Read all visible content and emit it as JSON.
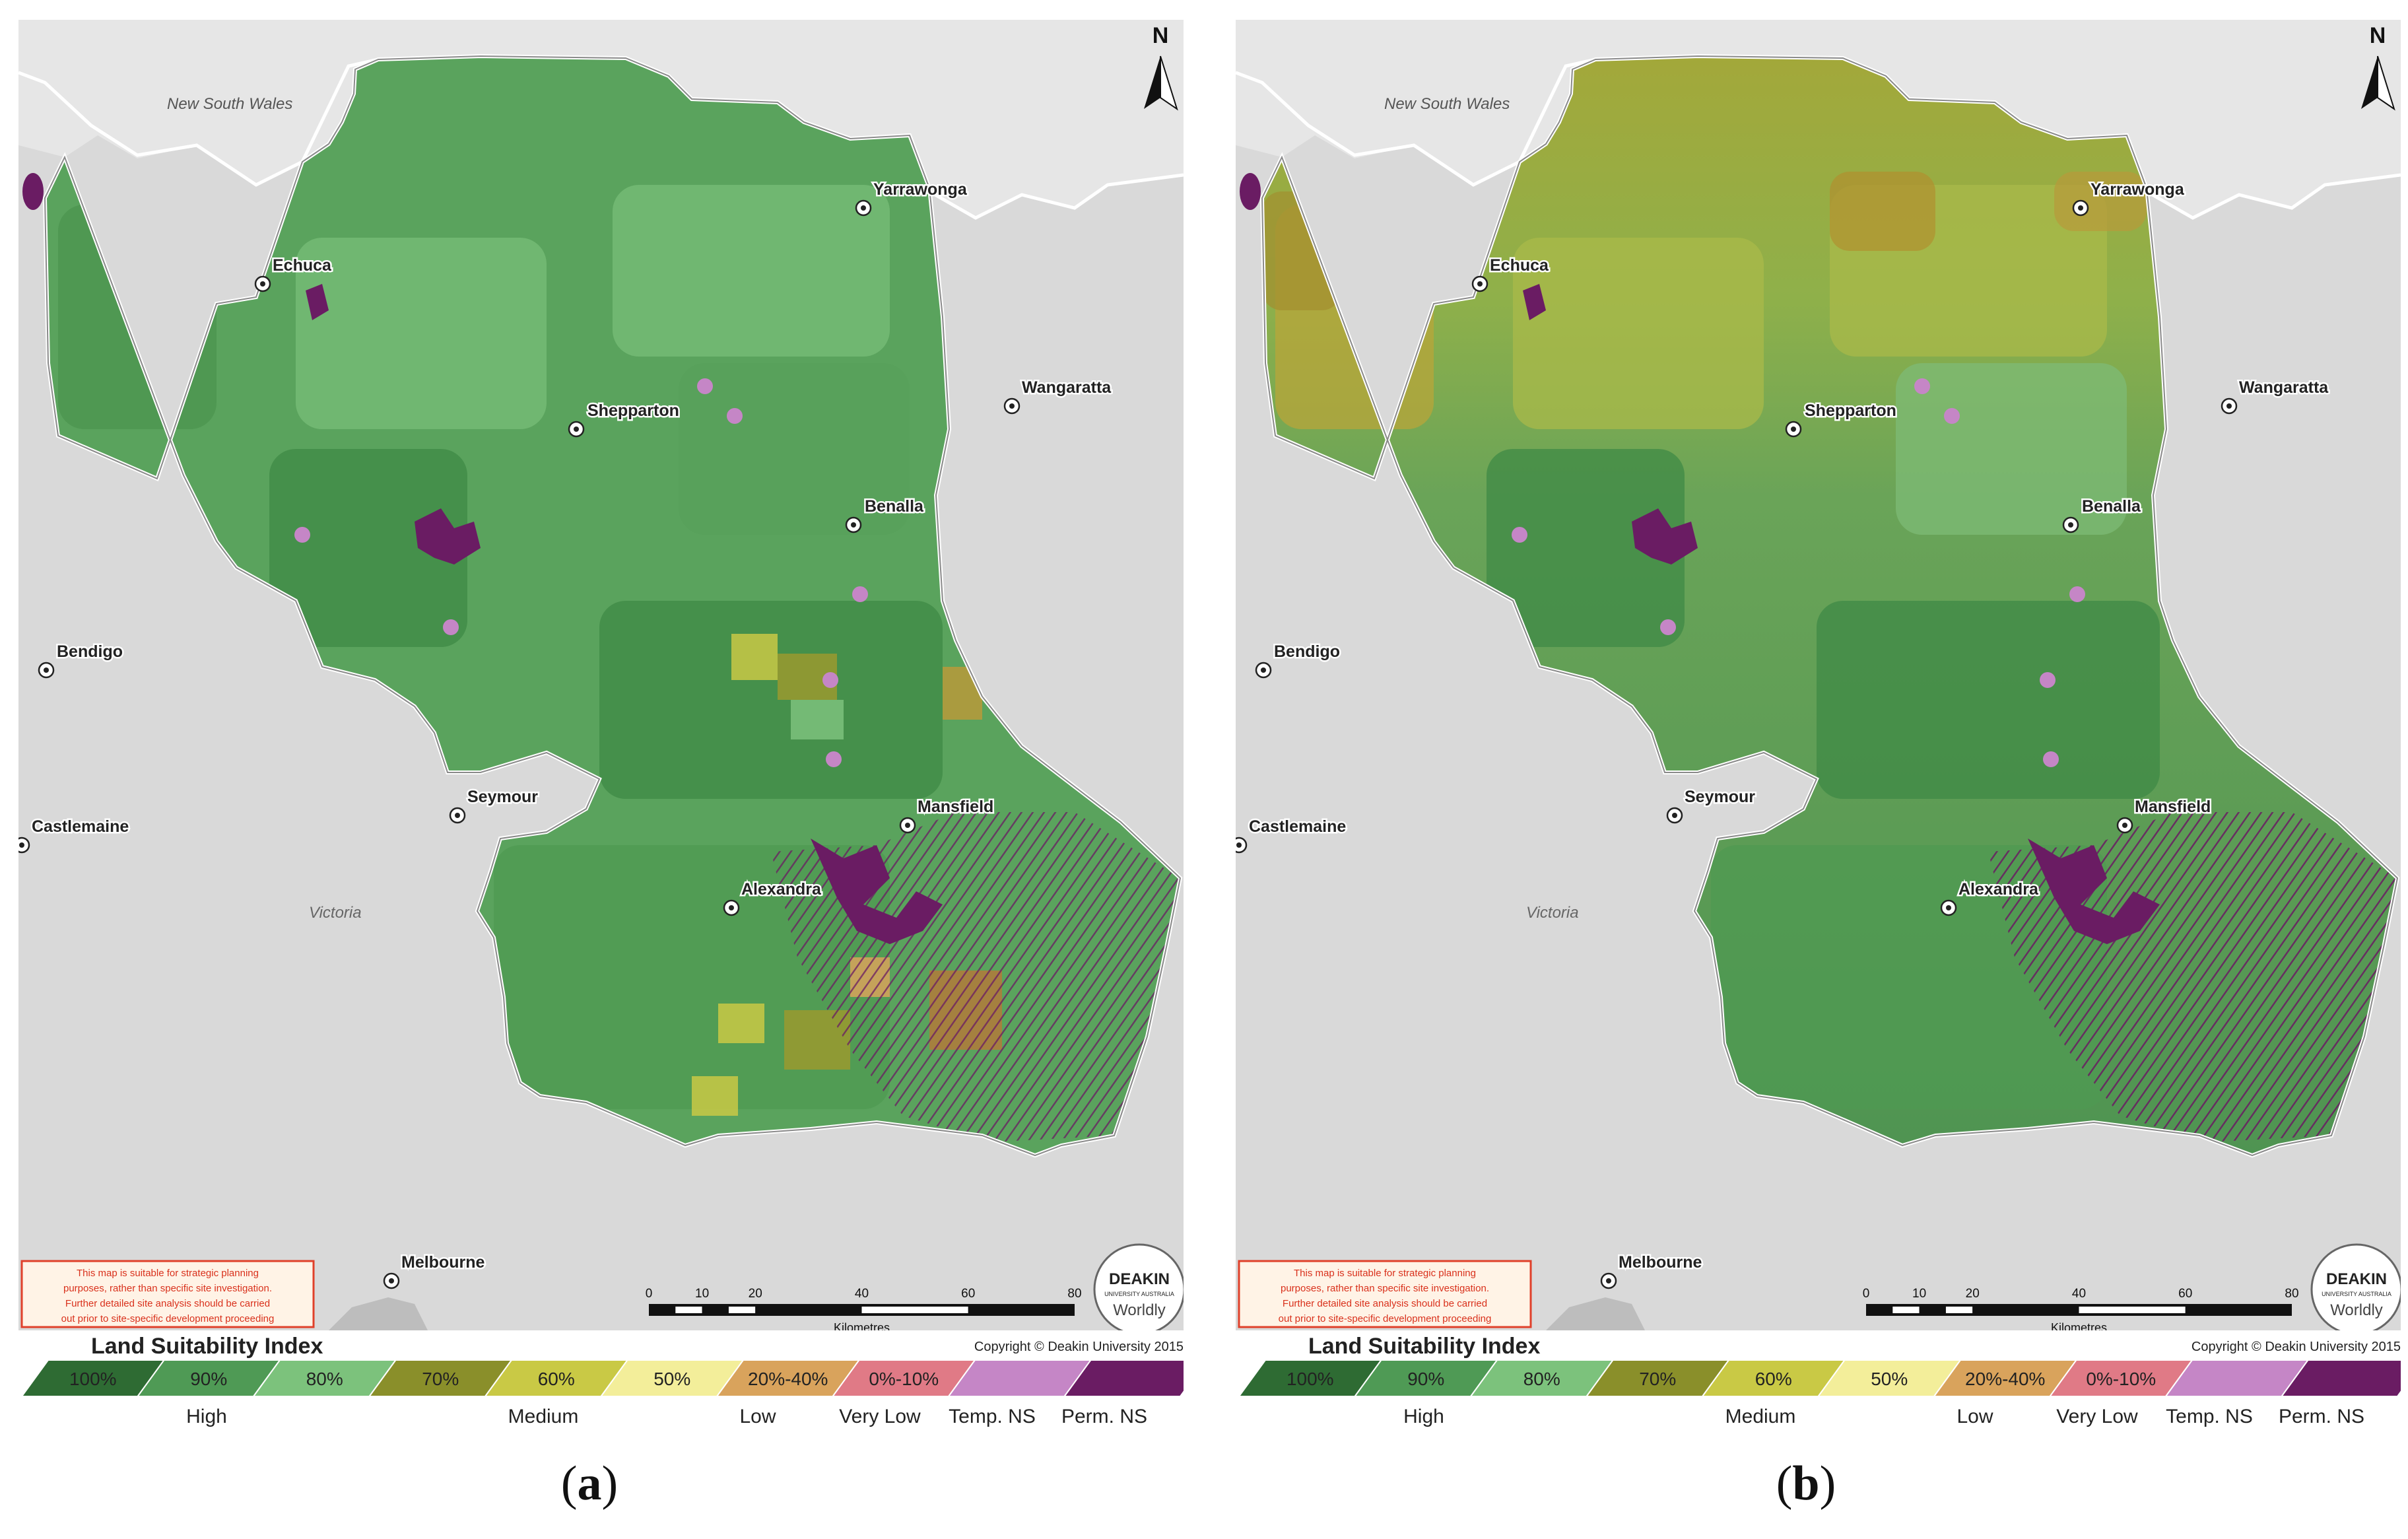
{
  "panels": [
    {
      "id": "a",
      "caption": "a",
      "places": {
        "nsw": "New South Wales",
        "victoria": "Victoria",
        "yarrawonga": "Yarrawonga",
        "echuca": "Echuca",
        "wangaratta": "Wangaratta",
        "shepparton": "Shepparton",
        "benalla": "Benalla",
        "bendigo": "Bendigo",
        "seymour": "Seymour",
        "mansfield": "Mansfield",
        "castlemaine": "Castlemaine",
        "alexandra": "Alexandra",
        "melbourne": "Melbourne"
      },
      "north": "N",
      "disclaimer": [
        "This map is suitable for strategic planning",
        "purposes, rather than specific site investigation.",
        "Further detailed site analysis should be carried",
        "out prior to site-specific development proceeding"
      ],
      "scale": {
        "ticks": [
          "0",
          "10",
          "20",
          "40",
          "60",
          "80"
        ],
        "unit": "Kilometres"
      },
      "logo": {
        "name": "DEAKIN",
        "sub": "UNIVERSITY AUSTRALIA",
        "tag": "Worldly"
      },
      "copyright": "Copyright © Deakin University 2015",
      "legend_title": "Land Suitability Index",
      "classes": [
        "100%",
        "90%",
        "80%",
        "70%",
        "60%",
        "50%",
        "20%-40%",
        "0%-10%",
        "",
        ""
      ],
      "groups": [
        "High",
        "Medium",
        "Low",
        "Very Low",
        "Temp. NS",
        "Perm. NS"
      ]
    },
    {
      "id": "b",
      "caption": "b",
      "places": {
        "nsw": "New South Wales",
        "victoria": "Victoria",
        "yarrawonga": "Yarrawonga",
        "echuca": "Echuca",
        "wangaratta": "Wangaratta",
        "shepparton": "Shepparton",
        "benalla": "Benalla",
        "bendigo": "Bendigo",
        "seymour": "Seymour",
        "mansfield": "Mansfield",
        "castlemaine": "Castlemaine",
        "alexandra": "Alexandra",
        "melbourne": "Melbourne"
      },
      "north": "N",
      "disclaimer": [
        "This map is suitable for strategic planning",
        "purposes, rather than specific site investigation.",
        "Further detailed site analysis should be carried",
        "out prior to site-specific development proceeding"
      ],
      "scale": {
        "ticks": [
          "0",
          "10",
          "20",
          "40",
          "60",
          "80"
        ],
        "unit": "Kilometres"
      },
      "logo": {
        "name": "DEAKIN",
        "sub": "UNIVERSITY AUSTRALIA",
        "tag": "Worldly"
      },
      "copyright": "Copyright © Deakin University 2015",
      "legend_title": "Land Suitability Index",
      "classes": [
        "100%",
        "90%",
        "80%",
        "70%",
        "60%",
        "50%",
        "20%-40%",
        "0%-10%",
        "",
        ""
      ],
      "groups": [
        "High",
        "Medium",
        "Low",
        "Very Low",
        "Temp. NS",
        "Perm. NS"
      ]
    }
  ],
  "colors": {
    "legend": [
      "#2e6b33",
      "#4f9a55",
      "#7cc27c",
      "#8a8f2a",
      "#c9c945",
      "#f3ee9a",
      "#d9a35c",
      "#e07a86",
      "#c586c6",
      "#6a1c63"
    ],
    "region_a": "#5aa35d",
    "region_b_north": "#a3a83a",
    "region_b_south": "#4f9452",
    "terrain": "#d9d9d9",
    "water": "#f2f2f2",
    "perm_ns": "#6a1c63",
    "temp_ns": "#c586c6",
    "disclaimer_border": "#e0402a",
    "disclaimer_text": "#d9311c"
  }
}
